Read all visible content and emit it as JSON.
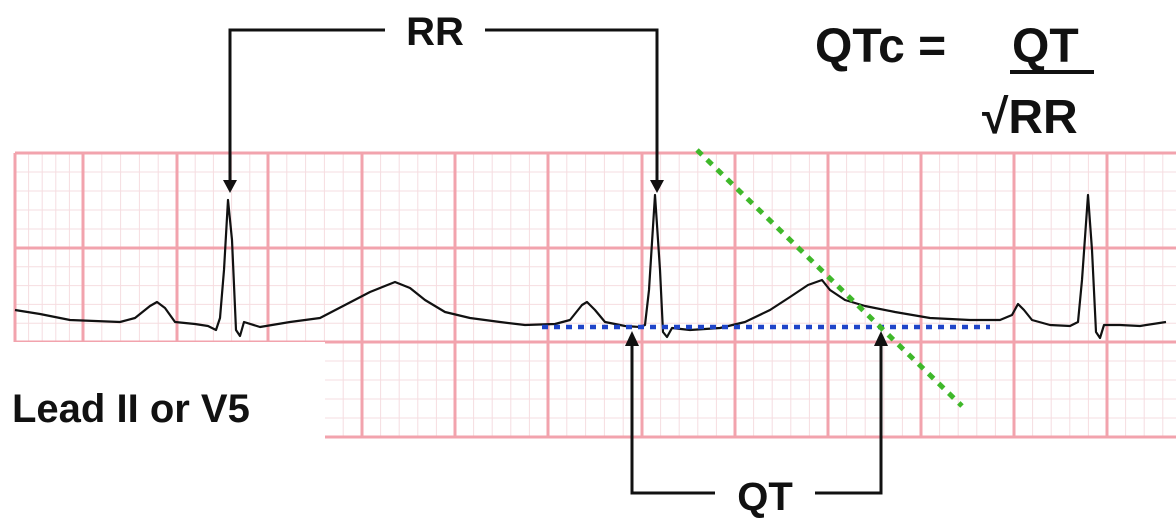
{
  "labels": {
    "rr": "RR",
    "qt": "QT",
    "lead": "Lead II or V5"
  },
  "formula": {
    "lhs": "QTc =",
    "numerator": "QT",
    "denominator": "√RR"
  },
  "colors": {
    "grid_major": "#f2a3ad",
    "grid_minor": "#f6dde0",
    "trace": "#111111",
    "baseline_dotted": "#1f44c8",
    "tangent_dotted": "#3fb82a",
    "ink": "#111111"
  }
}
